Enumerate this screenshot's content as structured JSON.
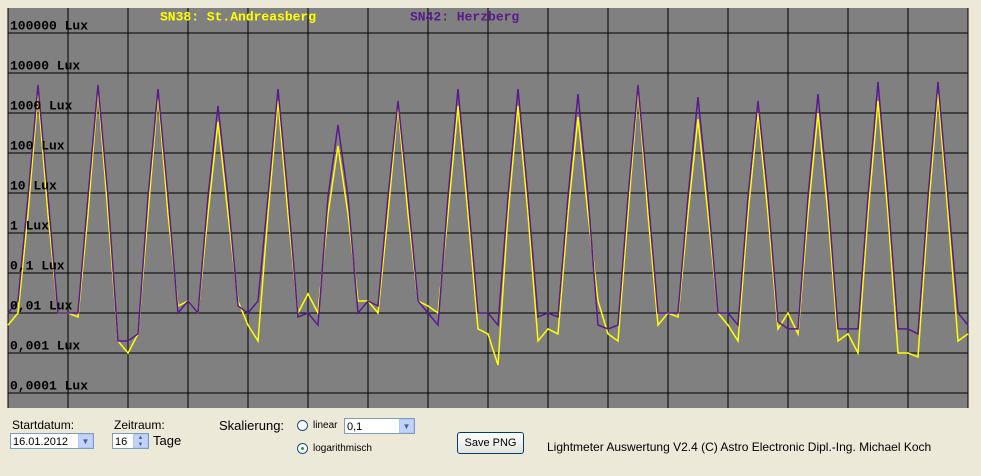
{
  "chart_data": {
    "type": "line",
    "log_scale": true,
    "grid": true,
    "xlim": [
      0,
      384
    ],
    "xticks": [
      0,
      24,
      48,
      72,
      96,
      120,
      144,
      168,
      192,
      216,
      240,
      264,
      288,
      312,
      336,
      360,
      384
    ],
    "ylim": [
      4.22e-05,
      421697
    ],
    "yticks": [
      {
        "value": 100000,
        "label": "100000 Lux"
      },
      {
        "value": 10000,
        "label": "10000 Lux"
      },
      {
        "value": 1000,
        "label": "1000 Lux"
      },
      {
        "value": 100,
        "label": "100 Lux"
      },
      {
        "value": 10,
        "label": "10 Lux"
      },
      {
        "value": 1,
        "label": "1 Lux"
      },
      {
        "value": 0.1,
        "label": "0,1 Lux"
      },
      {
        "value": 0.01,
        "label": "0,01 Lux"
      },
      {
        "value": 0.001,
        "label": "0,001 Lux"
      },
      {
        "value": 0.0001,
        "label": "0,0001 Lux"
      }
    ],
    "x": [
      0,
      4,
      8,
      12,
      16,
      20,
      24,
      28,
      32,
      36,
      40,
      44,
      48,
      52,
      56,
      60,
      64,
      68,
      72,
      76,
      80,
      84,
      88,
      92,
      96,
      100,
      104,
      108,
      112,
      116,
      120,
      124,
      128,
      132,
      136,
      140,
      144,
      148,
      152,
      156,
      160,
      164,
      168,
      172,
      176,
      180,
      184,
      188,
      192,
      196,
      200,
      204,
      208,
      212,
      216,
      220,
      224,
      228,
      232,
      236,
      240,
      244,
      248,
      252,
      256,
      260,
      264,
      268,
      272,
      276,
      280,
      284,
      288,
      292,
      296,
      300,
      304,
      308,
      312,
      316,
      320,
      324,
      328,
      332,
      336,
      340,
      344,
      348,
      352,
      356,
      360,
      364,
      368,
      372,
      376,
      380,
      384
    ],
    "series": [
      {
        "name": "SN38: St.Andreasberg",
        "color": "#ffff00",
        "values": [
          0.005,
          0.01,
          3,
          3000,
          3,
          0.01,
          0.01,
          0.008,
          3,
          4000,
          3,
          0.002,
          0.001,
          0.003,
          3,
          3000,
          3,
          0.015,
          0.02,
          0.01,
          3,
          600,
          3,
          0.02,
          0.005,
          0.002,
          3,
          2000,
          3,
          0.01,
          0.03,
          0.01,
          3,
          150,
          3,
          0.02,
          0.02,
          0.01,
          3,
          1500,
          3,
          0.02,
          0.015,
          0.01,
          3,
          1500,
          3,
          0.004,
          0.003,
          0.0005,
          3,
          1500,
          3,
          0.002,
          0.004,
          0.003,
          3,
          800,
          3,
          0.02,
          0.003,
          0.002,
          3,
          4000,
          3,
          0.005,
          0.01,
          0.008,
          3,
          700,
          3,
          0.01,
          0.005,
          0.002,
          3,
          1000,
          3,
          0.004,
          0.01,
          0.003,
          3,
          1000,
          3,
          0.002,
          0.003,
          0.001,
          3,
          2000,
          3,
          0.001,
          0.001,
          0.0008,
          3,
          3000,
          3,
          0.002,
          0.003
        ]
      },
      {
        "name": "SN42: Herzberg",
        "color": "#5a1a8e",
        "values": [
          0.01,
          0.02,
          8,
          5000,
          8,
          0.01,
          0.01,
          0.01,
          8,
          5000,
          8,
          0.002,
          0.002,
          0.003,
          8,
          4000,
          8,
          0.01,
          0.02,
          0.01,
          8,
          1500,
          8,
          0.015,
          0.01,
          0.02,
          8,
          4000,
          8,
          0.008,
          0.01,
          0.005,
          8,
          500,
          8,
          0.01,
          0.02,
          0.015,
          8,
          2000,
          8,
          0.02,
          0.01,
          0.005,
          8,
          4000,
          8,
          0.01,
          0.01,
          0.005,
          8,
          4000,
          8,
          0.008,
          0.01,
          0.008,
          8,
          3000,
          8,
          0.005,
          0.004,
          0.005,
          8,
          5000,
          8,
          0.01,
          0.01,
          0.01,
          8,
          2500,
          8,
          0.01,
          0.01,
          0.005,
          8,
          2000,
          8,
          0.006,
          0.004,
          0.004,
          8,
          3000,
          8,
          0.004,
          0.004,
          0.004,
          8,
          6000,
          8,
          0.004,
          0.004,
          0.003,
          8,
          6000,
          8,
          0.01,
          0.005
        ]
      }
    ]
  },
  "ui": {
    "startdatum_label": "Startdatum:",
    "startdatum": "16.01.2012",
    "zeitraum_label": "Zeitraum:",
    "zeitraum": "16",
    "tage": "Tage",
    "skalierung_label": "Skalierung:",
    "linear_label": "linear",
    "linear_value": "0,1",
    "log_label": "logarithmisch",
    "save_button": "Save PNG",
    "footer": "Lightmeter Auswertung V2.4  (C) Astro Electronic Dipl.-Ing. Michael Koch"
  }
}
